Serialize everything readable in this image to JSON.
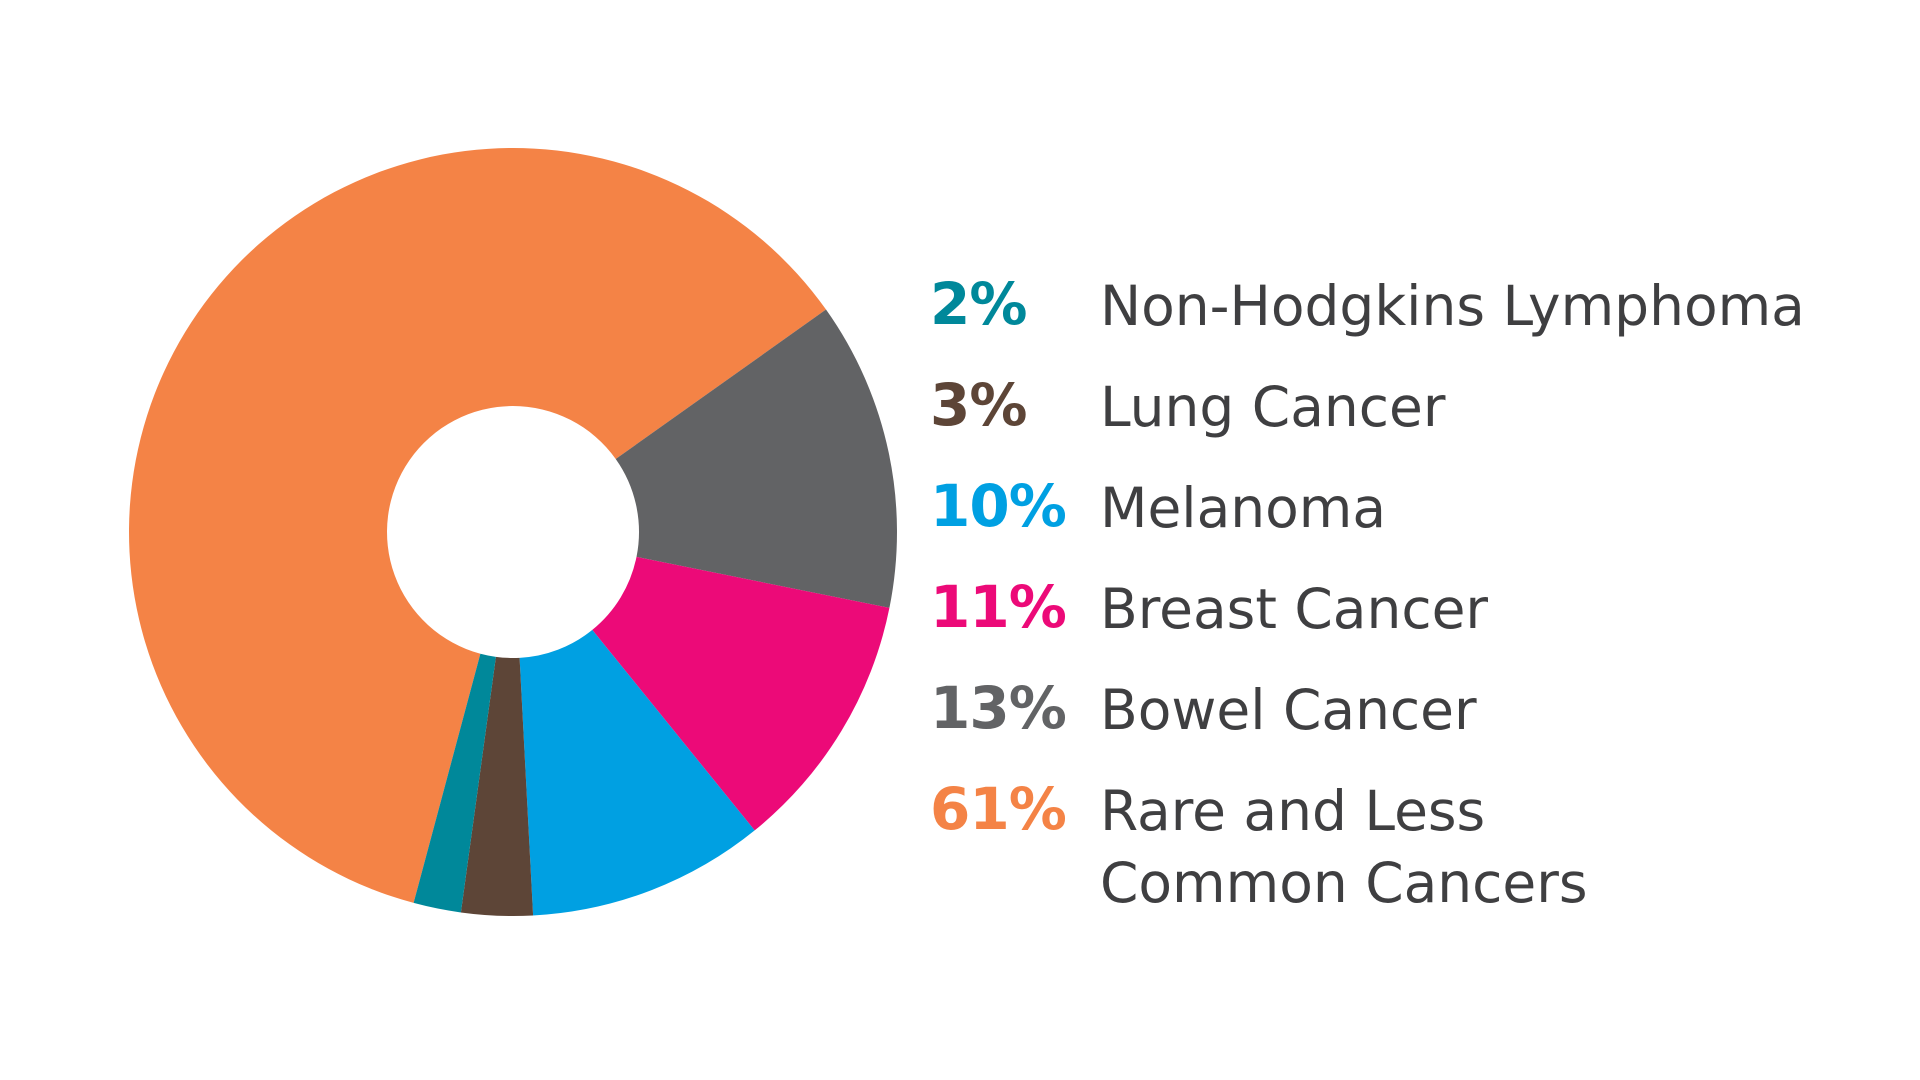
{
  "chart_data": {
    "type": "pie",
    "variant": "donut",
    "title": "",
    "legend_placement": "right",
    "slices": [
      {
        "label": "Rare and Less\nCommon Cancers",
        "value": 61,
        "value_label": "61%",
        "color": "#f48346"
      },
      {
        "label": "Bowel Cancer",
        "value": 13,
        "value_label": "13%",
        "color": "#626365"
      },
      {
        "label": "Breast Cancer",
        "value": 11,
        "value_label": "11%",
        "color": "#ec0a78"
      },
      {
        "label": "Melanoma",
        "value": 10,
        "value_label": "10%",
        "color": "#00a0e2"
      },
      {
        "label": "Lung Cancer",
        "value": 3,
        "value_label": "3%",
        "color": "#5d4537"
      },
      {
        "label": "Non-Hodgkins Lymphoma",
        "value": 2,
        "value_label": "2%",
        "color": "#00889a"
      }
    ],
    "legend_order": [
      5,
      4,
      3,
      2,
      1,
      0
    ]
  }
}
